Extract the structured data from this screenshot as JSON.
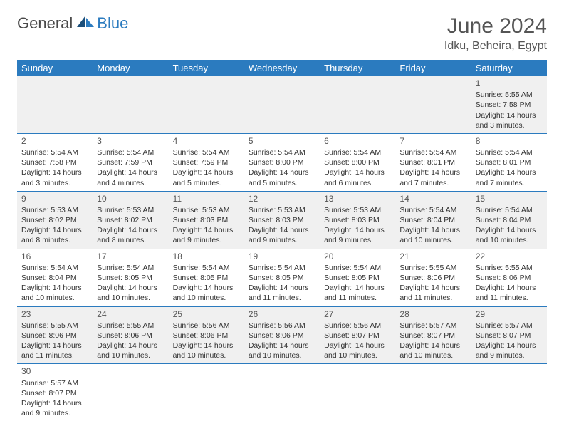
{
  "logo": {
    "general": "General",
    "blue": "Blue"
  },
  "title": "June 2024",
  "location": "Idku, Beheira, Egypt",
  "colors": {
    "header_bg": "#2b7bbf",
    "header_text": "#ffffff",
    "odd_row_bg": "#f0f0f0",
    "even_row_bg": "#ffffff",
    "border": "#2b7bbf",
    "text": "#333333",
    "title_text": "#555555"
  },
  "daysOfWeek": [
    "Sunday",
    "Monday",
    "Tuesday",
    "Wednesday",
    "Thursday",
    "Friday",
    "Saturday"
  ],
  "weeks": [
    [
      null,
      null,
      null,
      null,
      null,
      null,
      {
        "n": "1",
        "sr": "5:55 AM",
        "ss": "7:58 PM",
        "dl": "14 hours and 3 minutes."
      }
    ],
    [
      {
        "n": "2",
        "sr": "5:54 AM",
        "ss": "7:58 PM",
        "dl": "14 hours and 3 minutes."
      },
      {
        "n": "3",
        "sr": "5:54 AM",
        "ss": "7:59 PM",
        "dl": "14 hours and 4 minutes."
      },
      {
        "n": "4",
        "sr": "5:54 AM",
        "ss": "7:59 PM",
        "dl": "14 hours and 5 minutes."
      },
      {
        "n": "5",
        "sr": "5:54 AM",
        "ss": "8:00 PM",
        "dl": "14 hours and 5 minutes."
      },
      {
        "n": "6",
        "sr": "5:54 AM",
        "ss": "8:00 PM",
        "dl": "14 hours and 6 minutes."
      },
      {
        "n": "7",
        "sr": "5:54 AM",
        "ss": "8:01 PM",
        "dl": "14 hours and 7 minutes."
      },
      {
        "n": "8",
        "sr": "5:54 AM",
        "ss": "8:01 PM",
        "dl": "14 hours and 7 minutes."
      }
    ],
    [
      {
        "n": "9",
        "sr": "5:53 AM",
        "ss": "8:02 PM",
        "dl": "14 hours and 8 minutes."
      },
      {
        "n": "10",
        "sr": "5:53 AM",
        "ss": "8:02 PM",
        "dl": "14 hours and 8 minutes."
      },
      {
        "n": "11",
        "sr": "5:53 AM",
        "ss": "8:03 PM",
        "dl": "14 hours and 9 minutes."
      },
      {
        "n": "12",
        "sr": "5:53 AM",
        "ss": "8:03 PM",
        "dl": "14 hours and 9 minutes."
      },
      {
        "n": "13",
        "sr": "5:53 AM",
        "ss": "8:03 PM",
        "dl": "14 hours and 9 minutes."
      },
      {
        "n": "14",
        "sr": "5:54 AM",
        "ss": "8:04 PM",
        "dl": "14 hours and 10 minutes."
      },
      {
        "n": "15",
        "sr": "5:54 AM",
        "ss": "8:04 PM",
        "dl": "14 hours and 10 minutes."
      }
    ],
    [
      {
        "n": "16",
        "sr": "5:54 AM",
        "ss": "8:04 PM",
        "dl": "14 hours and 10 minutes."
      },
      {
        "n": "17",
        "sr": "5:54 AM",
        "ss": "8:05 PM",
        "dl": "14 hours and 10 minutes."
      },
      {
        "n": "18",
        "sr": "5:54 AM",
        "ss": "8:05 PM",
        "dl": "14 hours and 10 minutes."
      },
      {
        "n": "19",
        "sr": "5:54 AM",
        "ss": "8:05 PM",
        "dl": "14 hours and 11 minutes."
      },
      {
        "n": "20",
        "sr": "5:54 AM",
        "ss": "8:05 PM",
        "dl": "14 hours and 11 minutes."
      },
      {
        "n": "21",
        "sr": "5:55 AM",
        "ss": "8:06 PM",
        "dl": "14 hours and 11 minutes."
      },
      {
        "n": "22",
        "sr": "5:55 AM",
        "ss": "8:06 PM",
        "dl": "14 hours and 11 minutes."
      }
    ],
    [
      {
        "n": "23",
        "sr": "5:55 AM",
        "ss": "8:06 PM",
        "dl": "14 hours and 11 minutes."
      },
      {
        "n": "24",
        "sr": "5:55 AM",
        "ss": "8:06 PM",
        "dl": "14 hours and 10 minutes."
      },
      {
        "n": "25",
        "sr": "5:56 AM",
        "ss": "8:06 PM",
        "dl": "14 hours and 10 minutes."
      },
      {
        "n": "26",
        "sr": "5:56 AM",
        "ss": "8:06 PM",
        "dl": "14 hours and 10 minutes."
      },
      {
        "n": "27",
        "sr": "5:56 AM",
        "ss": "8:07 PM",
        "dl": "14 hours and 10 minutes."
      },
      {
        "n": "28",
        "sr": "5:57 AM",
        "ss": "8:07 PM",
        "dl": "14 hours and 10 minutes."
      },
      {
        "n": "29",
        "sr": "5:57 AM",
        "ss": "8:07 PM",
        "dl": "14 hours and 9 minutes."
      }
    ],
    [
      {
        "n": "30",
        "sr": "5:57 AM",
        "ss": "8:07 PM",
        "dl": "14 hours and 9 minutes."
      },
      null,
      null,
      null,
      null,
      null,
      null
    ]
  ],
  "labels": {
    "sunrise": "Sunrise:",
    "sunset": "Sunset:",
    "daylight": "Daylight:"
  }
}
